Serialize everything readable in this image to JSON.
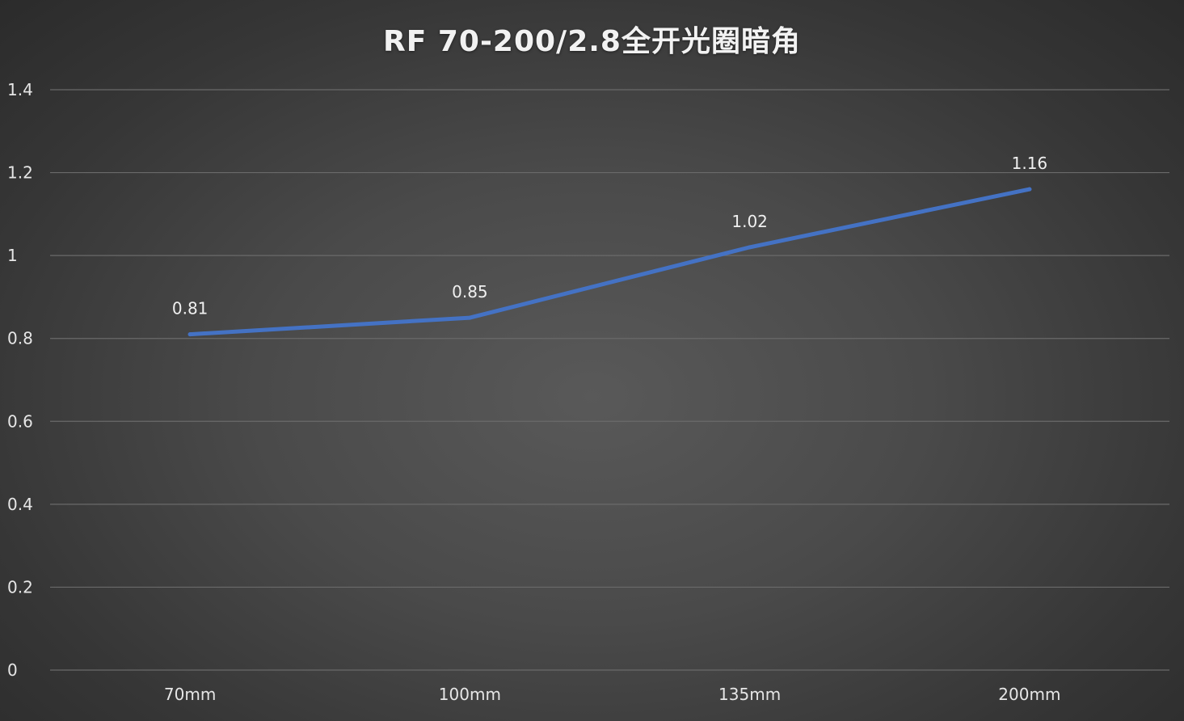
{
  "chart_data": {
    "type": "line",
    "title": "RF 70-200/2.8全开光圈暗角",
    "xlabel": "",
    "ylabel": "",
    "categories": [
      "70mm",
      "100mm",
      "135mm",
      "200mm"
    ],
    "series": [
      {
        "values": [
          0.81,
          0.85,
          1.02,
          1.16
        ],
        "color": "#4472c4",
        "data_labels": [
          "0.81",
          "0.85",
          "1.02",
          "1.16"
        ]
      }
    ],
    "ylim": [
      0,
      1.4
    ],
    "y_ticks": [
      0,
      0.2,
      0.4,
      0.6,
      0.8,
      1,
      1.2,
      1.4
    ],
    "y_tick_labels": [
      "0",
      "0.2",
      "0.4",
      "0.6",
      "0.8",
      "1",
      "1.2",
      "1.4"
    ],
    "grid": true,
    "legend": "none"
  }
}
